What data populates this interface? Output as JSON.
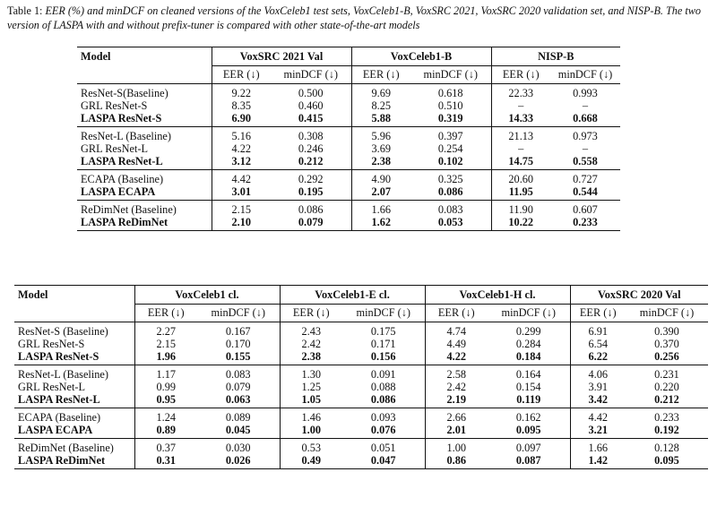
{
  "caption": {
    "label": "Table 1: ",
    "text": "EER (%) and minDCF on cleaned versions of the VoxCeleb1 test sets, VoxCeleb1-B, VoxSRC 2021, VoxSRC 2020 validation set, and NISP-B. The two version of LASPA with and without prefix-tuner is compared with other state-of-the-art models"
  },
  "metric_labels": {
    "eer": "EER (↓)",
    "mindcf": "minDCF (↓)"
  },
  "table1": {
    "model_header": "Model",
    "datasets": [
      "VoxSRC 2021 Val",
      "VoxCeleb1-B",
      "NISP-B"
    ],
    "groups": [
      [
        {
          "model": "ResNet-S(Baseline)",
          "bold": false,
          "v": [
            "9.22",
            "0.500",
            "9.69",
            "0.618",
            "22.33",
            "0.993"
          ]
        },
        {
          "model": "GRL ResNet-S",
          "bold": false,
          "v": [
            "8.35",
            "0.460",
            "8.25",
            "0.510",
            "–",
            "–"
          ]
        },
        {
          "model": "LASPA ResNet-S",
          "bold": true,
          "v": [
            "6.90",
            "0.415",
            "5.88",
            "0.319",
            "14.33",
            "0.668"
          ]
        }
      ],
      [
        {
          "model": "ResNet-L (Baseline)",
          "bold": false,
          "v": [
            "5.16",
            "0.308",
            "5.96",
            "0.397",
            "21.13",
            "0.973"
          ]
        },
        {
          "model": "GRL ResNet-L",
          "bold": false,
          "v": [
            "4.22",
            "0.246",
            "3.69",
            "0.254",
            "–",
            "–"
          ]
        },
        {
          "model": "LASPA ResNet-L",
          "bold": true,
          "v": [
            "3.12",
            "0.212",
            "2.38",
            "0.102",
            "14.75",
            "0.558"
          ]
        }
      ],
      [
        {
          "model": "ECAPA (Baseline)",
          "bold": false,
          "v": [
            "4.42",
            "0.292",
            "4.90",
            "0.325",
            "20.60",
            "0.727"
          ]
        },
        {
          "model": "LASPA ECAPA",
          "bold": true,
          "v": [
            "3.01",
            "0.195",
            "2.07",
            "0.086",
            "11.95",
            "0.544"
          ]
        }
      ],
      [
        {
          "model": "ReDimNet (Baseline)",
          "bold": false,
          "v": [
            "2.15",
            "0.086",
            "1.66",
            "0.083",
            "11.90",
            "0.607"
          ]
        },
        {
          "model": "LASPA ReDimNet",
          "bold": true,
          "v": [
            "2.10",
            "0.079",
            "1.62",
            "0.053",
            "10.22",
            "0.233"
          ]
        }
      ]
    ]
  },
  "table2": {
    "model_header": "Model",
    "datasets": [
      "VoxCeleb1 cl.",
      "VoxCeleb1-E cl.",
      "VoxCeleb1-H cl.",
      "VoxSRC 2020 Val"
    ],
    "groups": [
      [
        {
          "model": "ResNet-S (Baseline)",
          "bold": false,
          "v": [
            "2.27",
            "0.167",
            "2.43",
            "0.175",
            "4.74",
            "0.299",
            "6.91",
            "0.390"
          ]
        },
        {
          "model": "GRL ResNet-S",
          "bold": false,
          "v": [
            "2.15",
            "0.170",
            "2.42",
            "0.171",
            "4.49",
            "0.284",
            "6.54",
            "0.370"
          ]
        },
        {
          "model": "LASPA ResNet-S",
          "bold": true,
          "v": [
            "1.96",
            "0.155",
            "2.38",
            "0.156",
            "4.22",
            "0.184",
            "6.22",
            "0.256"
          ]
        }
      ],
      [
        {
          "model": "ResNet-L (Baseline)",
          "bold": false,
          "v": [
            "1.17",
            "0.083",
            "1.30",
            "0.091",
            "2.58",
            "0.164",
            "4.06",
            "0.231"
          ]
        },
        {
          "model": "GRL ResNet-L",
          "bold": false,
          "v": [
            "0.99",
            "0.079",
            "1.25",
            "0.088",
            "2.42",
            "0.154",
            "3.91",
            "0.220"
          ]
        },
        {
          "model": "LASPA ResNet-L",
          "bold": true,
          "v": [
            "0.95",
            "0.063",
            "1.05",
            "0.086",
            "2.19",
            "0.119",
            "3.42",
            "0.212"
          ]
        }
      ],
      [
        {
          "model": "ECAPA (Baseline)",
          "bold": false,
          "v": [
            "1.24",
            "0.089",
            "1.46",
            "0.093",
            "2.66",
            "0.162",
            "4.42",
            "0.233"
          ]
        },
        {
          "model": "LASPA ECAPA",
          "bold": true,
          "v": [
            "0.89",
            "0.045",
            "1.00",
            "0.076",
            "2.01",
            "0.095",
            "3.21",
            "0.192"
          ]
        }
      ],
      [
        {
          "model": "ReDimNet (Baseline)",
          "bold": false,
          "v": [
            "0.37",
            "0.030",
            "0.53",
            "0.051",
            "1.00",
            "0.097",
            "1.66",
            "0.128"
          ]
        },
        {
          "model": "LASPA ReDimNet",
          "bold": true,
          "v": [
            "0.31",
            "0.026",
            "0.49",
            "0.047",
            "0.86",
            "0.087",
            "1.42",
            "0.095"
          ]
        }
      ]
    ]
  }
}
